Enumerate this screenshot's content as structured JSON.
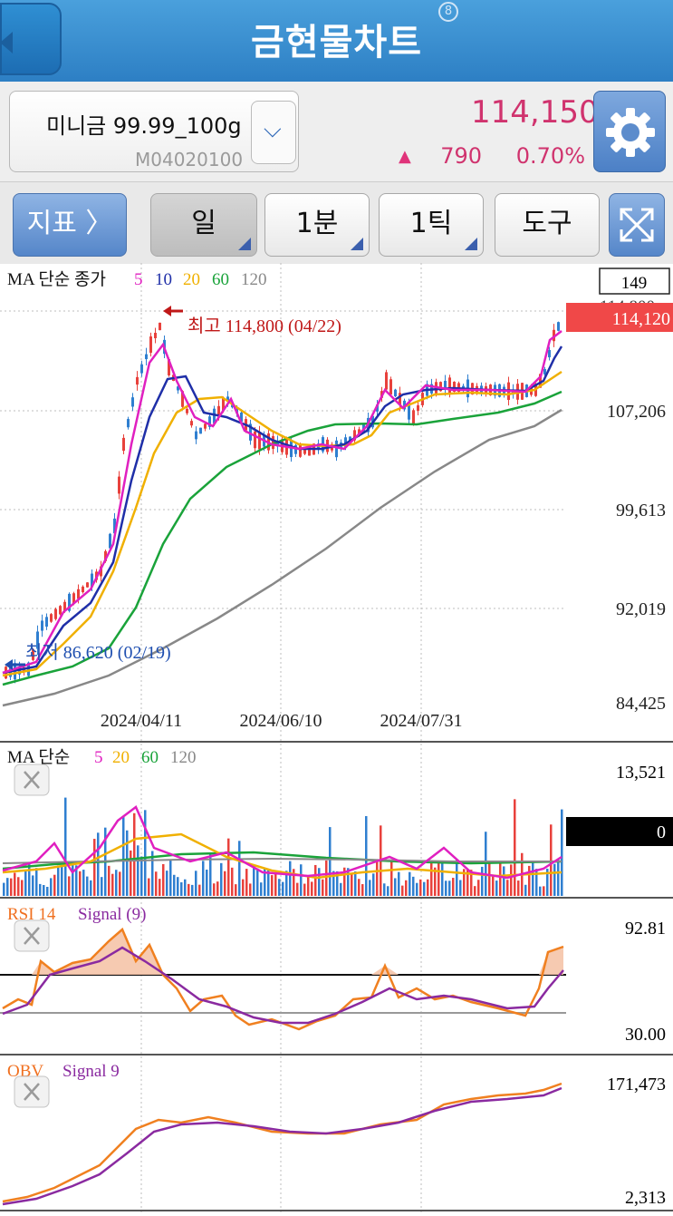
{
  "header": {
    "title": "금현물차트",
    "badge": "8"
  },
  "product": {
    "name": "미니금 99.99_100g",
    "code": "M04020100",
    "price": "114,150",
    "change_arrow": "▲",
    "change": "790",
    "change_pct": "0.70%"
  },
  "toolbar": {
    "indicator_label": "지표  〉",
    "period_label": "일",
    "minute_label": "1분",
    "tick_label": "1틱",
    "tools_label": "도구"
  },
  "colors": {
    "up": "#e8413c",
    "down": "#2f7fd0",
    "ma5": "#e020c0",
    "ma10": "#1f2fa8",
    "ma20": "#f0b000",
    "ma60": "#1aa33a",
    "ma120": "#888888",
    "rsi": "#f08020",
    "signal": "#8a2aa0",
    "price_tag": "#f04040"
  },
  "main_chart": {
    "legend": {
      "prefix": "MA 단순 종가",
      "ma5": "5",
      "ma10": "10",
      "ma20": "20",
      "ma60": "60",
      "ma120": "120"
    },
    "count_box": "149",
    "current_price_tag": "114,120",
    "clipped_label": "114,800",
    "high_label": "최고 114,800 (04/22)",
    "low_label": "최저 86,620 (02/19)",
    "y_ticks": [
      "107,206",
      "99,613",
      "92,019",
      "84,425"
    ],
    "x_ticks": [
      "2024/04/11",
      "2024/06/10",
      "2024/07/31"
    ]
  },
  "volume_chart": {
    "legend": {
      "prefix": "MA 단순",
      "ma5": "5",
      "ma20": "20",
      "ma60": "60",
      "ma120": "120"
    },
    "y_max": "13,521",
    "value_box": "0"
  },
  "rsi_chart": {
    "legend": {
      "name": "RSI 14",
      "signal": "Signal (9)"
    },
    "y_max": "92.81",
    "y_min": "30.00"
  },
  "obv_chart": {
    "legend": {
      "name": "OBV",
      "signal": "Signal 9"
    },
    "y_max": "171,473",
    "y_min": "2,313"
  }
}
